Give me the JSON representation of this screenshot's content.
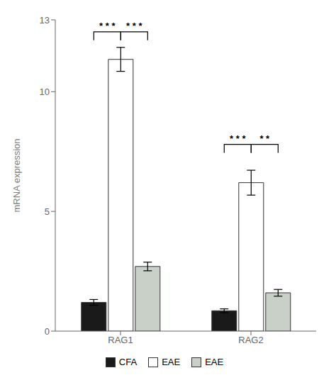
{
  "chart_data": {
    "type": "bar",
    "categories": [
      "RAG1",
      "RAG2"
    ],
    "series": [
      {
        "name": "CFA",
        "color": "#1a1a1a",
        "values": [
          1.2,
          0.85
        ],
        "errors": [
          0.12,
          0.08
        ]
      },
      {
        "name": "EAE",
        "color": "#ffffff",
        "values": [
          11.35,
          6.2
        ],
        "errors": [
          0.5,
          0.52
        ]
      },
      {
        "name": "EAE",
        "color": "#c8d0c8",
        "values": [
          2.7,
          1.6
        ],
        "errors": [
          0.18,
          0.14
        ]
      }
    ],
    "ylabel": "mRNA expression",
    "ylim": [
      0,
      13
    ],
    "yticks": [
      0,
      5,
      10,
      13
    ],
    "grid": false,
    "legend": "bottom",
    "annotations": [
      {
        "text": "* * *",
        "category": "RAG1",
        "from": 0,
        "to": 1,
        "y": 12.5
      },
      {
        "text": "* * *",
        "category": "RAG1",
        "from": 1,
        "to": 2,
        "y": 12.5
      },
      {
        "text": "* * *",
        "category": "RAG2",
        "from": 0,
        "to": 1,
        "y": 7.8
      },
      {
        "text": "* *",
        "category": "RAG2",
        "from": 1,
        "to": 2,
        "y": 7.8
      }
    ]
  }
}
